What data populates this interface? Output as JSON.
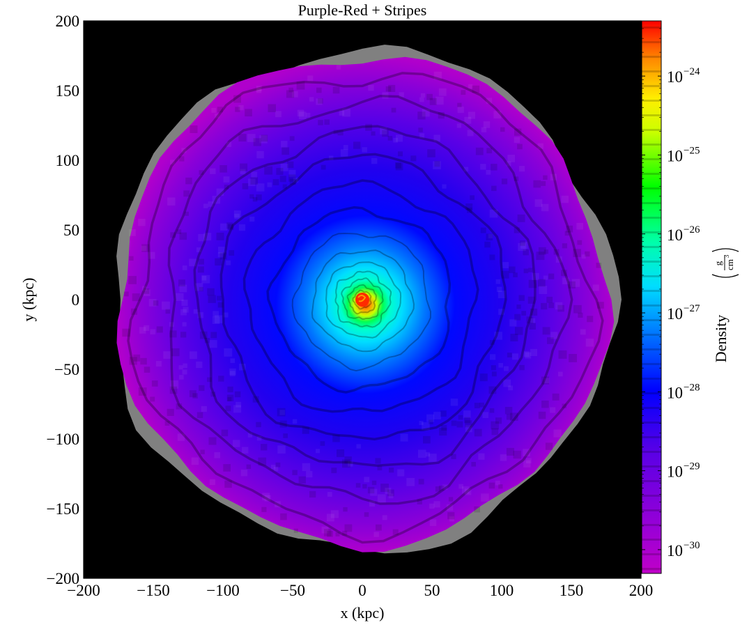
{
  "chart_data": {
    "type": "heatmap",
    "title": "Purple-Red + Stripes",
    "xlabel": "x  (kpc)",
    "ylabel": "y  (kpc)",
    "xlim": [
      -200,
      200
    ],
    "ylim": [
      -200,
      200
    ],
    "xticks": [
      -200,
      -150,
      -100,
      -50,
      0,
      50,
      100,
      150,
      200
    ],
    "yticks": [
      -200,
      -150,
      -100,
      -50,
      0,
      50,
      100,
      150,
      200
    ],
    "xtick_labels": [
      "−200",
      "−150",
      "−100",
      "−50",
      "0",
      "50",
      "100",
      "150",
      "200"
    ],
    "ytick_labels": [
      "−200",
      "−150",
      "−100",
      "−50",
      "0",
      "50",
      "100",
      "150",
      "200"
    ],
    "background_color": "#000000",
    "colorbar": {
      "label": "Density",
      "unit_numerator": "g",
      "unit_denominator": "cm",
      "unit_denominator_power": "3",
      "scale": "log",
      "range": [
        5e-31,
        5e-24
      ],
      "tick_exponents": [
        -24,
        -25,
        -26,
        -27,
        -28,
        -29,
        -30
      ],
      "tick_base": "10",
      "tick_labels_sup": [
        "−24",
        "−25",
        "−26",
        "−27",
        "−28",
        "−29",
        "−30"
      ],
      "colormap": "purple-red with stripes",
      "colors": [
        "#aa00cc",
        "#6600dd",
        "#0000ff",
        "#00aaff",
        "#00ffcc",
        "#00ff00",
        "#ccff00",
        "#ffcc00",
        "#ff6600",
        "#ff0000"
      ]
    },
    "structure": {
      "outer_edge_kpc": 178,
      "center_kpc": [
        0,
        0
      ],
      "peak_density": 5e-24,
      "edge_density": 5e-31,
      "profile": [
        {
          "r_kpc": 0,
          "log_density": -23.3
        },
        {
          "r_kpc": 5,
          "log_density": -25.0
        },
        {
          "r_kpc": 15,
          "log_density": -26.0
        },
        {
          "r_kpc": 30,
          "log_density": -27.0
        },
        {
          "r_kpc": 45,
          "log_density": -27.6
        },
        {
          "r_kpc": 70,
          "log_density": -28.3
        },
        {
          "r_kpc": 110,
          "log_density": -29.0
        },
        {
          "r_kpc": 150,
          "log_density": -29.8
        },
        {
          "r_kpc": 178,
          "log_density": -30.3
        }
      ]
    }
  }
}
